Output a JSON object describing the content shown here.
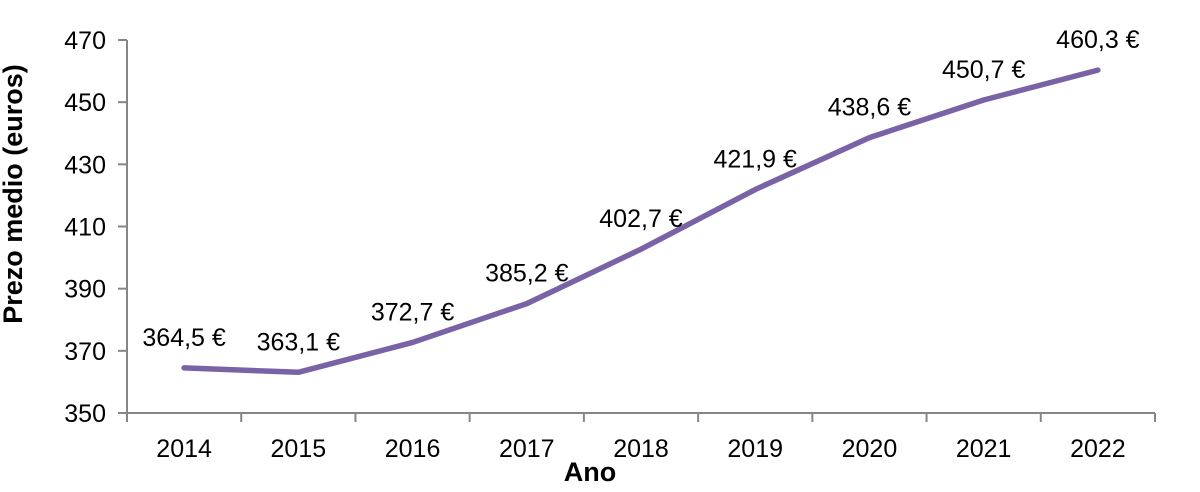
{
  "chart_data": {
    "type": "line",
    "title": "",
    "xlabel": "Ano",
    "ylabel": "Prezo medio (euros)",
    "categories": [
      "2014",
      "2015",
      "2016",
      "2017",
      "2018",
      "2019",
      "2020",
      "2021",
      "2022"
    ],
    "series": [
      {
        "name": "Prezo medio",
        "values": [
          364.5,
          363.1,
          372.7,
          385.2,
          402.7,
          421.9,
          438.6,
          450.7,
          460.3
        ],
        "point_labels": [
          "364,5 €",
          "363,1 €",
          "372,7 €",
          "385,2 €",
          "402,7 €",
          "421,9 €",
          "438,6 €",
          "450,7 €",
          "460,3 €"
        ]
      }
    ],
    "ylim": [
      350,
      470
    ],
    "ytick_step": 20,
    "ytick_labels": [
      "350",
      "370",
      "390",
      "410",
      "430",
      "450",
      "470"
    ],
    "grid": false,
    "legend_position": "none",
    "line_color": "#7A62A6",
    "axis_color": "#868686",
    "label_color": "#000000"
  }
}
